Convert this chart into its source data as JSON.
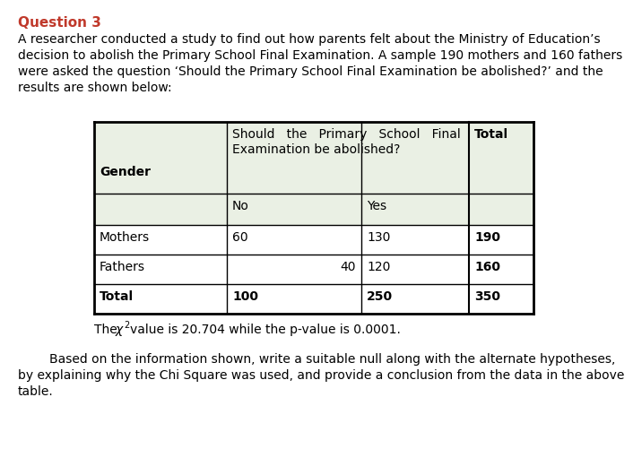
{
  "title": "Question 3",
  "title_color": "#c0392b",
  "body_color": "#000000",
  "background_color": "#ffffff",
  "para1": "A researcher conducted a study to find out how parents felt about the Ministry of Education’s",
  "para2": "decision to abolish the Primary School Final Examination. A sample 190 mothers and 160 fathers",
  "para3": "were asked the question ‘Should the Primary School Final Examination be abolished?’ and the",
  "para4": "results are shown below:",
  "table_header_bg": "#eaf0e4",
  "para5": "        Based on the information shown, write a suitable null along with the alternate hypotheses,",
  "para6": "by explaining why the Chi Square was used, and provide a conclusion from the data in the above",
  "para7": "table.",
  "font_size_body": 10.0,
  "font_size_title": 11.0,
  "font_family": "DejaVu Sans"
}
